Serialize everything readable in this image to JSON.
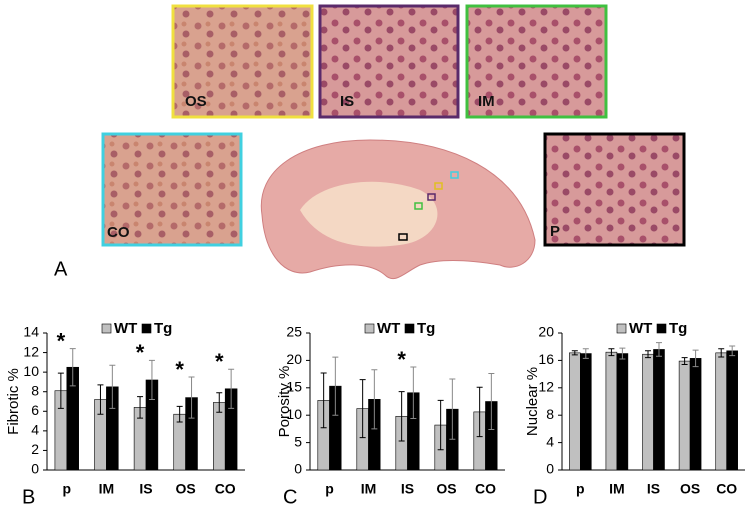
{
  "figure": {
    "panel_a": "A",
    "micrographs": [
      "OS",
      "IS",
      "IM",
      "CO",
      "P"
    ]
  },
  "chart_data": [
    {
      "type": "bar",
      "panel_label": "B",
      "ylabel": "Fibrotic %",
      "categories": [
        "p",
        "IM",
        "IS",
        "OS",
        "CO"
      ],
      "series": [
        {
          "name": "WT",
          "color": "#c0c0c0",
          "values": [
            8.1,
            7.2,
            6.4,
            5.7,
            6.9
          ],
          "errors": [
            1.8,
            1.5,
            1.1,
            0.8,
            1.0
          ]
        },
        {
          "name": "Tg",
          "color": "#000000",
          "values": [
            10.5,
            8.5,
            9.2,
            7.4,
            8.3
          ],
          "errors": [
            1.9,
            2.2,
            2.0,
            2.1,
            2.0
          ]
        }
      ],
      "significance": [
        "*",
        null,
        "*",
        "*",
        "*"
      ],
      "ylim": [
        0,
        14
      ],
      "yticks": [
        0,
        2,
        4,
        6,
        8,
        10,
        12,
        14
      ]
    },
    {
      "type": "bar",
      "panel_label": "C",
      "ylabel": "Porosity %",
      "categories": [
        "p",
        "IM",
        "IS",
        "OS",
        "CO"
      ],
      "series": [
        {
          "name": "WT",
          "color": "#c0c0c0",
          "values": [
            12.7,
            11.2,
            9.8,
            8.2,
            10.6
          ],
          "errors": [
            5.0,
            5.3,
            4.5,
            4.5,
            4.5
          ]
        },
        {
          "name": "Tg",
          "color": "#000000",
          "values": [
            15.3,
            12.9,
            14.1,
            11.1,
            12.5
          ],
          "errors": [
            5.3,
            5.4,
            4.7,
            5.5,
            5.1
          ]
        }
      ],
      "significance": [
        null,
        null,
        "*",
        null,
        null
      ],
      "ylim": [
        0,
        25
      ],
      "yticks": [
        0,
        5,
        10,
        15,
        20,
        25
      ]
    },
    {
      "type": "bar",
      "panel_label": "D",
      "ylabel": "Nuclear %",
      "categories": [
        "p",
        "IM",
        "IS",
        "OS",
        "CO"
      ],
      "series": [
        {
          "name": "WT",
          "color": "#c0c0c0",
          "values": [
            17.1,
            17.2,
            16.9,
            15.9,
            17.1
          ],
          "errors": [
            0.3,
            0.5,
            0.5,
            0.5,
            0.6
          ]
        },
        {
          "name": "Tg",
          "color": "#000000",
          "values": [
            17.0,
            17.0,
            17.6,
            16.3,
            17.4
          ],
          "errors": [
            0.7,
            0.8,
            1.0,
            1.2,
            0.7
          ]
        }
      ],
      "significance": [
        null,
        null,
        null,
        null,
        null
      ],
      "ylim": [
        0,
        20
      ],
      "yticks": [
        0,
        4,
        8,
        12,
        16,
        20
      ]
    }
  ]
}
